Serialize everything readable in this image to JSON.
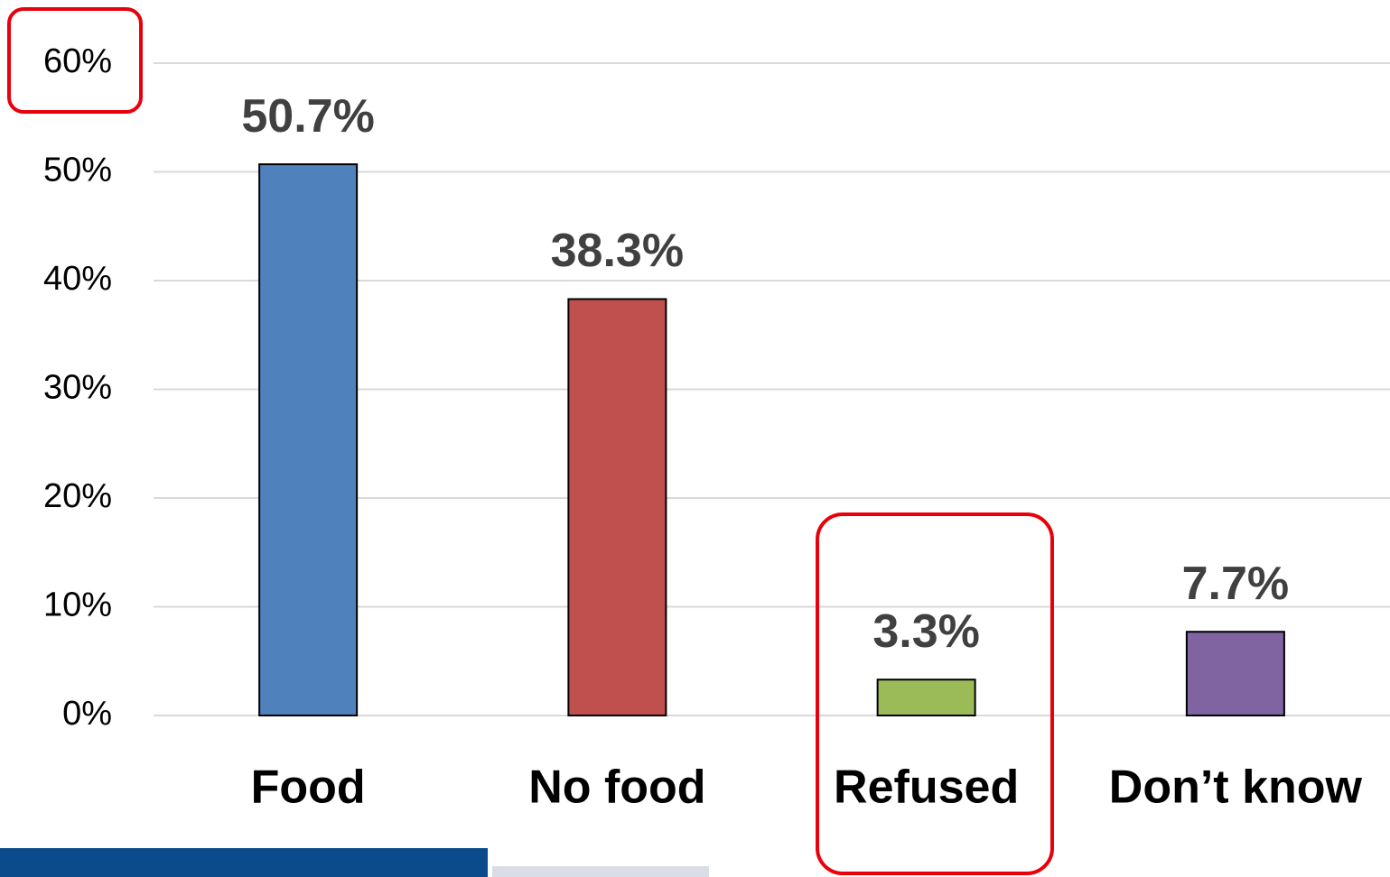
{
  "chart_data": {
    "type": "bar",
    "categories": [
      "Food",
      "No food",
      "Refused",
      "Don’t know"
    ],
    "values": [
      50.7,
      38.3,
      3.3,
      7.7
    ],
    "value_labels": [
      "50.7%",
      "38.3%",
      "3.3%",
      "7.7%"
    ],
    "colors": [
      "#4f81bd",
      "#c0504d",
      "#9bbb59",
      "#8064a2"
    ],
    "ylim": [
      0,
      60
    ],
    "yticks": [
      {
        "value": 0,
        "label": "0%"
      },
      {
        "value": 10,
        "label": "10%"
      },
      {
        "value": 20,
        "label": "20%"
      },
      {
        "value": 30,
        "label": "30%"
      },
      {
        "value": 40,
        "label": "40%"
      },
      {
        "value": 50,
        "label": "50%"
      },
      {
        "value": 60,
        "label": "60%"
      }
    ],
    "grid": true
  }
}
